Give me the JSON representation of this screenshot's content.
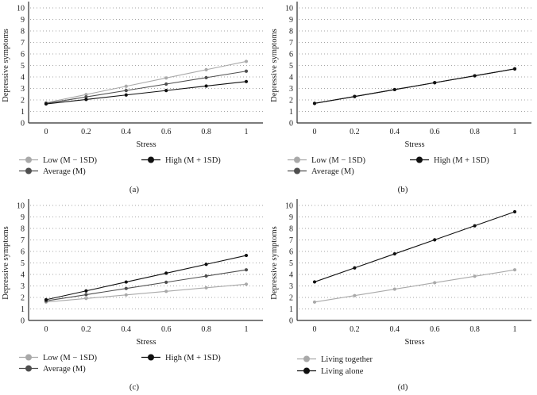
{
  "figure_caption_labels": [
    "(a)",
    "(b)",
    "(c)",
    "(d)"
  ],
  "chart_data": [
    {
      "type": "line",
      "caption": "(a)",
      "xlabel": "Stress",
      "ylabel": "Depressive symptoms",
      "x": [
        0,
        0.2,
        0.4,
        0.6,
        0.8,
        1
      ],
      "xtick_labels": [
        "0",
        "0.2",
        "0.4",
        "0.6",
        "0.8",
        "1"
      ],
      "ylim": [
        0,
        10
      ],
      "ytick_step": 1,
      "grid": "horizontal-dotted",
      "legend_position": "below",
      "legend_layout": "two-column",
      "series": [
        {
          "name": "Low (M − 1SD)",
          "color": "#a9a9a9",
          "values": [
            1.75,
            2.47,
            3.19,
            3.91,
            4.63,
            5.35
          ]
        },
        {
          "name": "Average (M)",
          "color": "#4f4f4f",
          "values": [
            1.7,
            2.26,
            2.82,
            3.38,
            3.94,
            4.5
          ]
        },
        {
          "name": "High (M + 1SD)",
          "color": "#101010",
          "values": [
            1.65,
            2.04,
            2.43,
            2.82,
            3.21,
            3.6
          ]
        }
      ]
    },
    {
      "type": "line",
      "caption": "(b)",
      "xlabel": "Stress",
      "ylabel": "Depressive symptoms",
      "x": [
        0,
        0.2,
        0.4,
        0.6,
        0.8,
        1
      ],
      "xtick_labels": [
        "0",
        "0.2",
        "0.4",
        "0.6",
        "0.8",
        "1"
      ],
      "ylim": [
        0,
        10
      ],
      "ytick_step": 1,
      "grid": "horizontal-dotted",
      "legend_position": "below",
      "legend_layout": "two-column",
      "series": [
        {
          "name": "Low (M − 1SD)",
          "color": "#a9a9a9",
          "values": [
            1.7,
            2.3,
            2.9,
            3.5,
            4.1,
            4.7
          ]
        },
        {
          "name": "Average (M)",
          "color": "#4f4f4f",
          "values": [
            1.7,
            2.3,
            2.9,
            3.5,
            4.1,
            4.7
          ]
        },
        {
          "name": "High (M + 1SD)",
          "color": "#101010",
          "values": [
            1.7,
            2.3,
            2.9,
            3.5,
            4.1,
            4.7
          ]
        }
      ]
    },
    {
      "type": "line",
      "caption": "(c)",
      "xlabel": "Stress",
      "ylabel": "Depressive symptoms",
      "x": [
        0,
        0.2,
        0.4,
        0.6,
        0.8,
        1
      ],
      "xtick_labels": [
        "0",
        "0.2",
        "0.4",
        "0.6",
        "0.8",
        "1"
      ],
      "ylim": [
        0,
        10
      ],
      "ytick_step": 1,
      "grid": "horizontal-dotted",
      "legend_position": "below",
      "legend_layout": "two-column",
      "series": [
        {
          "name": "Low (M − 1SD)",
          "color": "#a9a9a9",
          "values": [
            1.6,
            1.91,
            2.22,
            2.53,
            2.84,
            3.15
          ]
        },
        {
          "name": "Average (M)",
          "color": "#4f4f4f",
          "values": [
            1.7,
            2.24,
            2.78,
            3.32,
            3.86,
            4.4
          ]
        },
        {
          "name": "High (M + 1SD)",
          "color": "#101010",
          "values": [
            1.8,
            2.57,
            3.34,
            4.11,
            4.88,
            5.65
          ]
        }
      ]
    },
    {
      "type": "line",
      "caption": "(d)",
      "xlabel": "Stress",
      "ylabel": "Depressive symptoms",
      "x": [
        0,
        0.2,
        0.4,
        0.6,
        0.8,
        1
      ],
      "xtick_labels": [
        "0",
        "0.2",
        "0.4",
        "0.6",
        "0.8",
        "1"
      ],
      "ylim": [
        0,
        10
      ],
      "ytick_step": 1,
      "grid": "horizontal-dotted",
      "legend_position": "below",
      "legend_layout": "stacked",
      "series": [
        {
          "name": "Living together",
          "color": "#a9a9a9",
          "values": [
            1.6,
            2.16,
            2.72,
            3.28,
            3.84,
            4.4
          ]
        },
        {
          "name": "Living alone",
          "color": "#101010",
          "values": [
            3.35,
            4.57,
            5.79,
            7.01,
            8.23,
            9.45
          ]
        }
      ]
    }
  ],
  "style": {
    "axis_color": "#2f2f2f",
    "grid_color": "#a6a6a6",
    "text_color": "#1c1c1c"
  }
}
